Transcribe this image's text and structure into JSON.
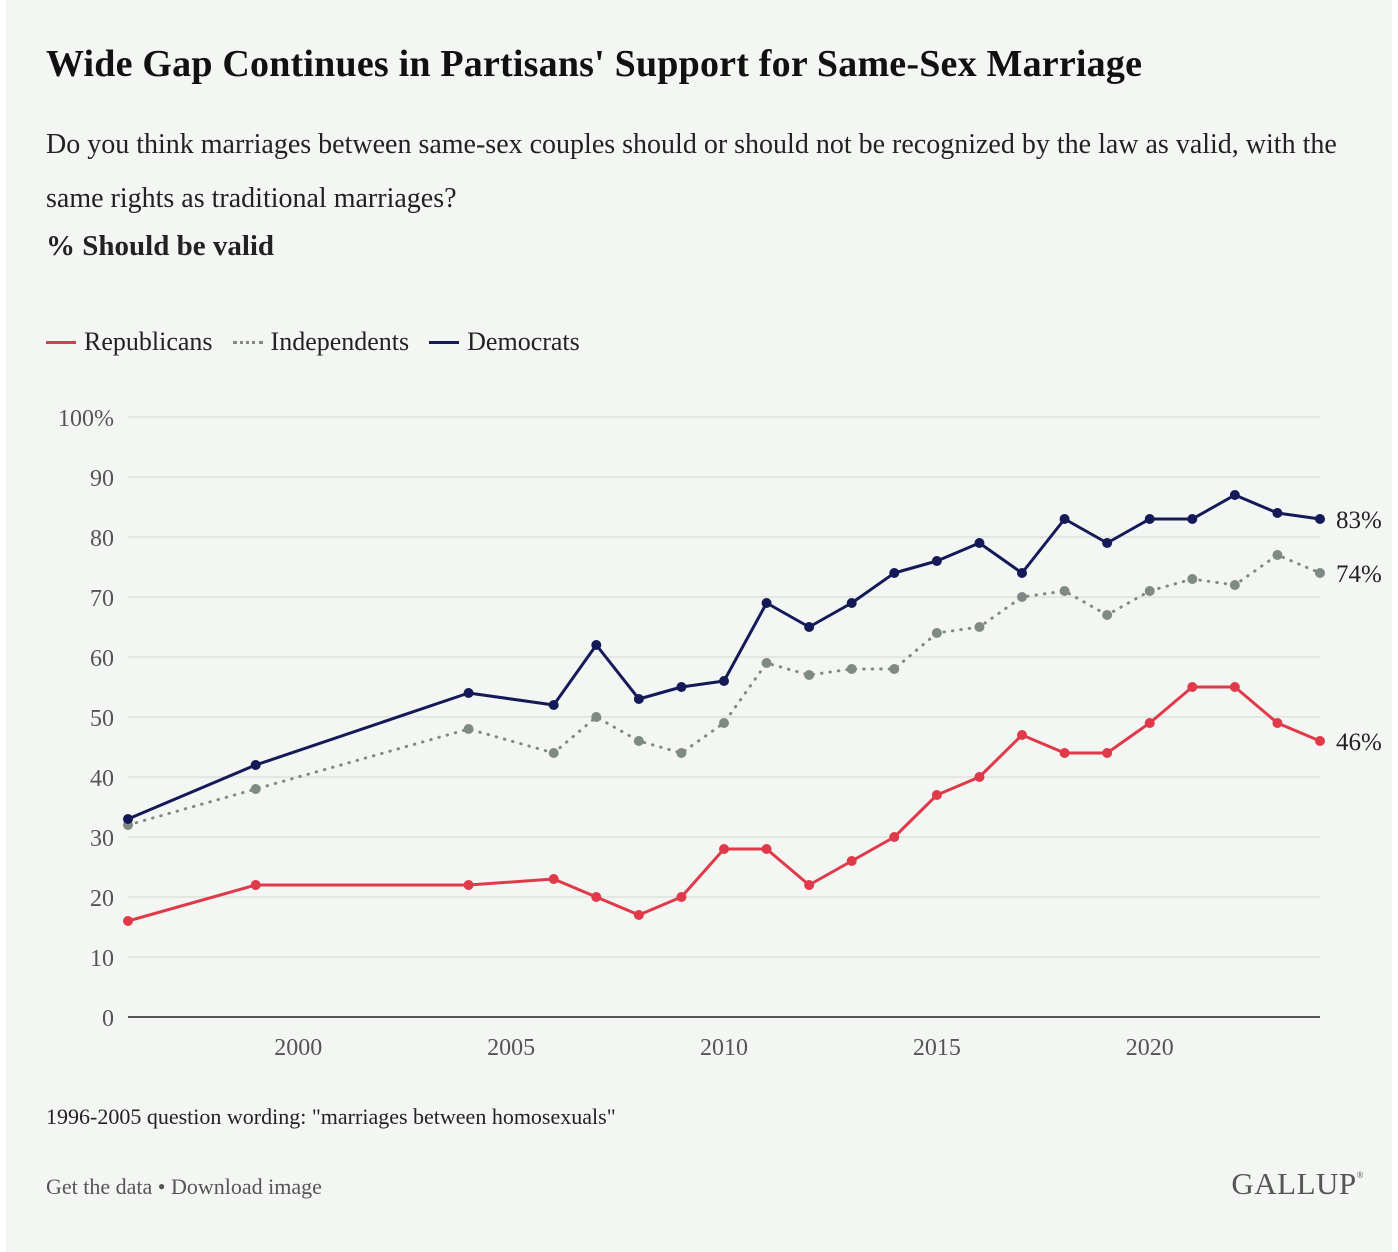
{
  "chart_data": {
    "type": "line",
    "title": "Wide Gap Continues in Partisans' Support for Same-Sex Marriage",
    "subtitle": "Do you think marriages between same-sex couples should or should not be recognized by the law as valid, with the same rights as traditional marriages?",
    "measure": "% Should be valid",
    "xlim": [
      1996,
      2024
    ],
    "ylim": [
      0,
      100
    ],
    "x_ticks": [
      2000,
      2005,
      2010,
      2015,
      2020
    ],
    "y_ticks": [
      0,
      10,
      20,
      30,
      40,
      50,
      60,
      70,
      80,
      90,
      100
    ],
    "y_tick_labels": [
      "0",
      "10",
      "20",
      "30",
      "40",
      "50",
      "60",
      "70",
      "80",
      "90",
      "100%"
    ],
    "grid": true,
    "legend_position": "top-left",
    "x": [
      1996,
      1999,
      2004,
      2006,
      2007,
      2008,
      2009,
      2010,
      2011,
      2012,
      2013,
      2014,
      2015,
      2016,
      2017,
      2018,
      2019,
      2020,
      2021,
      2022,
      2023,
      2024
    ],
    "series": [
      {
        "name": "Republicans",
        "color": "#e0394a",
        "style": "solid",
        "values": [
          16,
          22,
          22,
          23,
          20,
          17,
          20,
          28,
          28,
          22,
          26,
          30,
          37,
          40,
          47,
          44,
          44,
          49,
          55,
          55,
          49,
          46
        ],
        "end_label": "46%"
      },
      {
        "name": "Independents",
        "color": "#7f8a85",
        "style": "dotted",
        "values": [
          32,
          38,
          48,
          44,
          50,
          46,
          44,
          49,
          59,
          57,
          58,
          58,
          64,
          65,
          70,
          71,
          67,
          71,
          73,
          72,
          77,
          74
        ],
        "end_label": "74%"
      },
      {
        "name": "Democrats",
        "color": "#141a57",
        "style": "solid",
        "values": [
          33,
          42,
          54,
          52,
          62,
          53,
          55,
          56,
          69,
          65,
          69,
          74,
          76,
          79,
          74,
          83,
          79,
          83,
          83,
          87,
          84,
          83
        ],
        "end_label": "83%"
      }
    ],
    "note": "1996-2005 question wording: \"marriages between homosexuals\""
  },
  "footer": {
    "get_data": "Get the data",
    "separator": " • ",
    "download": "Download image",
    "logo": "GALLUP",
    "logo_mark": "®"
  }
}
